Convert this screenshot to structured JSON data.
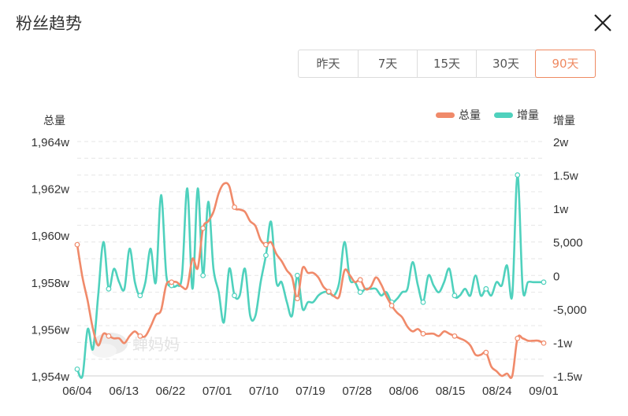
{
  "dialog": {
    "title": "粉丝趋势"
  },
  "range_tabs": [
    {
      "label": "昨天",
      "active": false
    },
    {
      "label": "7天",
      "active": false
    },
    {
      "label": "15天",
      "active": false
    },
    {
      "label": "30天",
      "active": false
    },
    {
      "label": "90天",
      "active": true
    }
  ],
  "watermark": "蝉妈妈",
  "colors": {
    "total": "#f08a6a",
    "increment": "#4fd1bd",
    "accent": "#ef8a62"
  },
  "chart_data": {
    "type": "line",
    "left_axis_title": "总量",
    "right_axis_title": "增量",
    "legend": [
      "总量",
      "增量"
    ],
    "legend_position": "top-right",
    "grid": true,
    "left_ticks": [
      "1,964w",
      "1,962w",
      "1,960w",
      "1,958w",
      "1,956w",
      "1,954w"
    ],
    "left_ylim": [
      19540000,
      19640000
    ],
    "right_ticks": [
      "2w",
      "1.5w",
      "1w",
      "5,000",
      "0",
      "-5,000",
      "-1w",
      "-1.5w"
    ],
    "right_ylim": [
      -15000,
      20000
    ],
    "x_ticks": [
      "06/04",
      "06/13",
      "06/22",
      "07/01",
      "07/10",
      "07/19",
      "07/28",
      "08/06",
      "08/15",
      "08/24",
      "09/01"
    ],
    "x_start": "06/04",
    "series": [
      {
        "name": "总量",
        "axis": "left",
        "values": [
          19596000,
          19582000,
          19572000,
          19560000,
          19553000,
          19558000,
          19557000,
          19556000,
          19556000,
          19554000,
          19557000,
          19559000,
          19557000,
          19557000,
          19561000,
          19566000,
          19568000,
          19579000,
          19580000,
          19580000,
          19578000,
          19578000,
          19590000,
          19586000,
          19603000,
          19606000,
          19610000,
          19618000,
          19622000,
          19621000,
          19612000,
          19611000,
          19610000,
          19606000,
          19604000,
          19598000,
          19596000,
          19597000,
          19592000,
          19589000,
          19585000,
          19582000,
          19573000,
          19586000,
          19584000,
          19584000,
          19582000,
          19578000,
          19576000,
          19574000,
          19574000,
          19585000,
          19583000,
          19580000,
          19581000,
          19577000,
          19578000,
          19582000,
          19579000,
          19574000,
          19570000,
          19567000,
          19565000,
          19561000,
          19559000,
          19560000,
          19558000,
          19558000,
          19558000,
          19557000,
          19559000,
          19558000,
          19557000,
          19556000,
          19555000,
          19553000,
          19549000,
          19549000,
          19550000,
          19544000,
          19542000,
          19540000,
          19541000,
          19540000,
          19556000,
          19556000,
          19555000,
          19555000,
          19555000,
          19554000
        ]
      },
      {
        "name": "增量",
        "axis": "right",
        "values": [
          -14000,
          -15000,
          -8000,
          -11000,
          -3000,
          5000,
          -2000,
          1000,
          -1000,
          -2000,
          4000,
          -1000,
          -3000,
          -1000,
          4000,
          -1000,
          12000,
          0,
          -1500,
          -1500,
          0,
          13000,
          -2000,
          13000,
          0,
          11000,
          1000,
          -2500,
          -7000,
          1000,
          -3000,
          -3000,
          1000,
          -6000,
          -6000,
          -1000,
          3000,
          8000,
          -1000,
          -1000,
          -4000,
          -6000,
          0,
          -5000,
          -4000,
          -4000,
          -3000,
          -2500,
          -2500,
          -3000,
          -1000,
          5000,
          -500,
          -1000,
          -2500,
          -2000,
          -2000,
          -2000,
          -3000,
          -2500,
          -4000,
          -3500,
          -2500,
          -2000,
          2000,
          -1500,
          -4000,
          0,
          -1500,
          -2500,
          -1000,
          1000,
          -3000,
          -3000,
          -2000,
          -3000,
          0,
          -3000,
          -2000,
          -3000,
          -1000,
          -1500,
          1500,
          -3000,
          15000,
          -2000,
          -1000,
          -1000,
          -1000,
          -1000
        ]
      }
    ]
  }
}
